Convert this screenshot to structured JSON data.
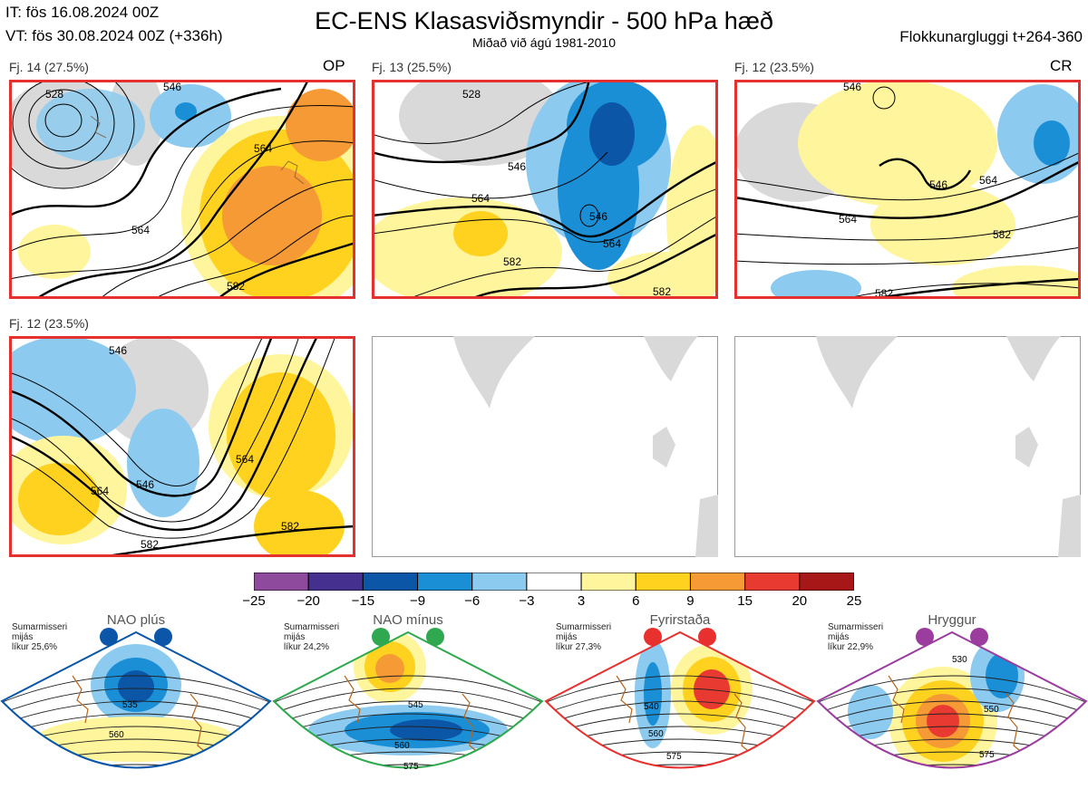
{
  "header": {
    "it_line": "IT: fös 16.08.2024 00Z",
    "vt_line": "VT: fös 30.08.2024 00Z  (+336h)",
    "title": "EC-ENS Klasasviðsmyndir - 500 hPa hæð",
    "subtitle": "Miðað við ágú 1981-2010",
    "window": "Flokkunargluggi t+264-360"
  },
  "panels": [
    {
      "label": "Fj. 14 (27.5%)",
      "tag": "OP",
      "contours": [
        "528",
        "546",
        "564",
        "564",
        "582"
      ],
      "highlighted": true
    },
    {
      "label": "Fj. 13 (25.5%)",
      "tag": "",
      "contours": [
        "528",
        "546",
        "546",
        "564",
        "564",
        "582",
        "582"
      ],
      "highlighted": true
    },
    {
      "label": "Fj. 12 (23.5%)",
      "tag": "CR",
      "contours": [
        "546",
        "546",
        "564",
        "564",
        "582",
        "582"
      ],
      "highlighted": true
    },
    {
      "label": "Fj. 12 (23.5%)",
      "tag": "",
      "contours": [
        "546",
        "546",
        "564",
        "564",
        "582",
        "582"
      ],
      "highlighted": true
    },
    {
      "label": "",
      "tag": "",
      "contours": [],
      "highlighted": false
    },
    {
      "label": "",
      "tag": "",
      "contours": [],
      "highlighted": false
    }
  ],
  "chart_data": {
    "type": "heatmap",
    "title": "EC-ENS Klasasviðsmyndir - 500 hPa hæð",
    "variable": "500 hPa height anomaly",
    "colorbar": {
      "ticks": [
        "−25",
        "−20",
        "−15",
        "−9",
        "−6",
        "−3",
        "3",
        "6",
        "9",
        "15",
        "20",
        "25"
      ],
      "colors": [
        "#8e4a9c",
        "#45308f",
        "#0c56a8",
        "#1b8fd6",
        "#8ccbef",
        "#ffffff",
        "#fff59d",
        "#ffd21f",
        "#f59a35",
        "#e83a30",
        "#a81717"
      ]
    },
    "regimes": [
      {
        "name": "NAO plús",
        "season": "Sumarmisseri",
        "region": "mijás",
        "prob": "líkur 25,6%",
        "color": "#0b56a8",
        "contours": [
          "535",
          "560"
        ]
      },
      {
        "name": "NAO mínus",
        "season": "Sumarmisseri",
        "region": "mijás",
        "prob": "líkur 24,2%",
        "color": "#2fa84f",
        "contours": [
          "545",
          "560",
          "575"
        ]
      },
      {
        "name": "Fyrirstaða",
        "season": "Sumarmisseri",
        "region": "mijás",
        "prob": "líkur 27,3%",
        "color": "#e8302e",
        "contours": [
          "540",
          "560",
          "575"
        ]
      },
      {
        "name": "Hryggur",
        "season": "Sumarmisseri",
        "region": "mijás",
        "prob": "líkur 22,9%",
        "color": "#9a3d9e",
        "contours": [
          "530",
          "550",
          "575"
        ]
      }
    ]
  }
}
